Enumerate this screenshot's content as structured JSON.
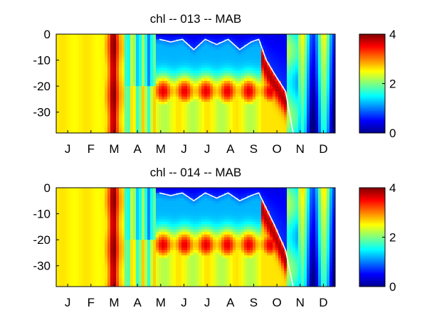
{
  "chart_data": [
    {
      "type": "heatmap",
      "title": "chl -- 013 -- MAB",
      "xlabel": "",
      "ylabel": "",
      "x_tick_labels": [
        "J",
        "F",
        "M",
        "A",
        "M",
        "J",
        "J",
        "A",
        "S",
        "O",
        "N",
        "D"
      ],
      "y_tick_labels": [
        "0",
        "-10",
        "-20",
        "-30"
      ],
      "y_ticks": [
        0,
        -10,
        -20,
        -30
      ],
      "ylim": [
        -38,
        0
      ],
      "xlim_days": [
        0,
        365
      ],
      "colorbar": {
        "min": 0,
        "max": 4,
        "tick_labels": [
          "0",
          "2",
          "4"
        ],
        "ticks": [
          0,
          2,
          4
        ],
        "colormap": "jet"
      },
      "overlay_line": {
        "color": "#ffffff",
        "description_points": [
          {
            "day": 135,
            "depth": -2
          },
          {
            "day": 150,
            "depth": -3
          },
          {
            "day": 165,
            "depth": -2
          },
          {
            "day": 180,
            "depth": -6
          },
          {
            "day": 195,
            "depth": -2
          },
          {
            "day": 210,
            "depth": -4
          },
          {
            "day": 225,
            "depth": -2
          },
          {
            "day": 240,
            "depth": -6
          },
          {
            "day": 255,
            "depth": -3
          },
          {
            "day": 265,
            "depth": -2
          },
          {
            "day": 275,
            "depth": -10
          },
          {
            "day": 285,
            "depth": -15
          },
          {
            "day": 300,
            "depth": -22
          },
          {
            "day": 310,
            "depth": -38
          }
        ]
      },
      "features": {
        "spring_bloom_day": 75,
        "subsurface_max_depth": -22,
        "subsurface_max_days": [
          135,
          280
        ]
      }
    },
    {
      "type": "heatmap",
      "title": "chl -- 014 -- MAB",
      "xlabel": "",
      "ylabel": "",
      "x_tick_labels": [
        "J",
        "F",
        "M",
        "A",
        "M",
        "J",
        "J",
        "A",
        "S",
        "O",
        "N",
        "D"
      ],
      "y_tick_labels": [
        "0",
        "-10",
        "-20",
        "-30"
      ],
      "y_ticks": [
        0,
        -10,
        -20,
        -30
      ],
      "ylim": [
        -38,
        0
      ],
      "xlim_days": [
        0,
        365
      ],
      "colorbar": {
        "min": 0,
        "max": 4,
        "tick_labels": [
          "0",
          "2",
          "4"
        ],
        "ticks": [
          0,
          2,
          4
        ],
        "colormap": "jet"
      },
      "overlay_line": {
        "color": "#ffffff",
        "description_points": [
          {
            "day": 135,
            "depth": -2
          },
          {
            "day": 150,
            "depth": -3
          },
          {
            "day": 165,
            "depth": -2
          },
          {
            "day": 180,
            "depth": -5
          },
          {
            "day": 195,
            "depth": -2
          },
          {
            "day": 210,
            "depth": -4
          },
          {
            "day": 225,
            "depth": -2
          },
          {
            "day": 240,
            "depth": -5
          },
          {
            "day": 255,
            "depth": -3
          },
          {
            "day": 265,
            "depth": -2
          },
          {
            "day": 275,
            "depth": -8
          },
          {
            "day": 285,
            "depth": -14
          },
          {
            "day": 300,
            "depth": -24
          },
          {
            "day": 310,
            "depth": -38
          }
        ]
      },
      "features": {
        "spring_bloom_day": 75,
        "subsurface_max_depth": -22,
        "subsurface_max_days": [
          135,
          280
        ]
      }
    }
  ]
}
